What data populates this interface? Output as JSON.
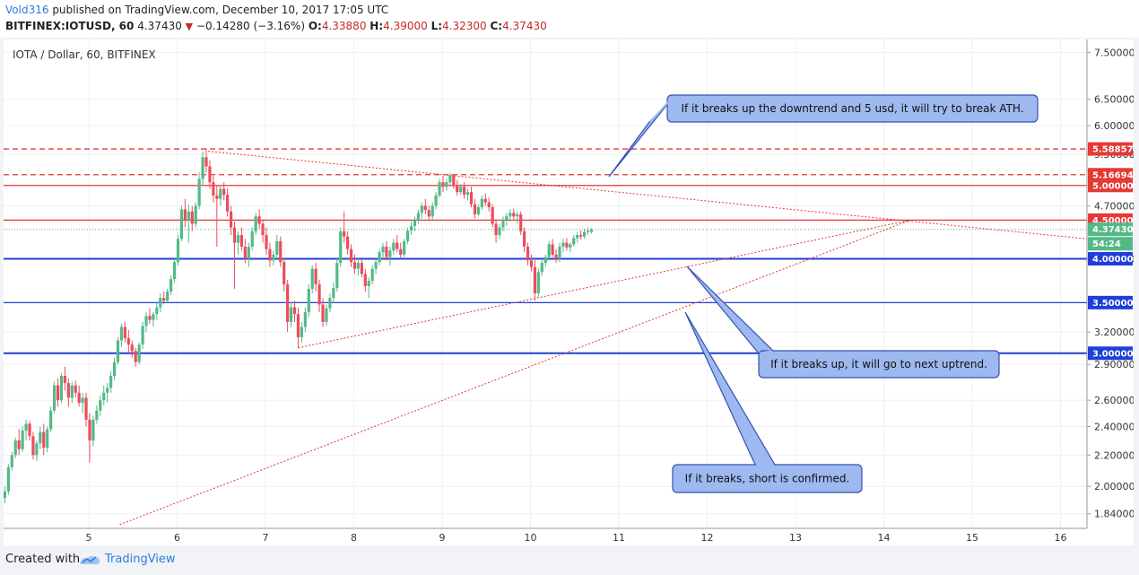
{
  "header": {
    "author": "Vold316",
    "published_text": "published on TradingView.com, December 10, 2017 17:05 UTC",
    "symbol": "BITFINEX:IOTUSD, 60",
    "last": "4.37430",
    "change": "−0.14280 (−3.16%)",
    "o_label": "O:",
    "o_value": "4.33880",
    "h_label": "H:",
    "h_value": "4.39000",
    "l_label": "L:",
    "l_value": "4.32300",
    "c_label": "C:",
    "c_value": "4.37430"
  },
  "footer": {
    "created_with": "Created with",
    "brand": "TradingView"
  },
  "colors": {
    "up": "#53b987",
    "down": "#eb4d5c",
    "red_line": "#e53935",
    "blue_line": "#1f3fd8",
    "callout_fill": "#9db9ef",
    "callout_stroke": "#3a4fb0"
  },
  "chart_data": {
    "type": "candlestick",
    "title": "IOTA / Dollar, 60, BITFINEX",
    "x_ticks": [
      "5",
      "6",
      "7",
      "8",
      "9",
      "10",
      "11",
      "12",
      "13",
      "14",
      "15",
      "16"
    ],
    "y_ticks": [
      "7.50000",
      "6.50000",
      "6.00000",
      "5.50000",
      "4.70000",
      "4.00000",
      "3.20000",
      "2.90000",
      "2.60000",
      "2.40000",
      "2.20000",
      "2.00000",
      "1.84000"
    ],
    "y_scale": "log",
    "ylim": [
      1.76,
      7.8
    ],
    "xlim": [
      4.05,
      16.3
    ],
    "current_price": "4.37430",
    "countdown": "54:24",
    "horizontal_levels": [
      {
        "price": 5.58857,
        "label": "5.58857",
        "color": "#e53935",
        "style": "dashed"
      },
      {
        "price": 5.16694,
        "label": "5.16694",
        "color": "#e53935",
        "style": "dashed"
      },
      {
        "price": 5.0,
        "label": "5.00000",
        "color": "#e53935",
        "style": "solid"
      },
      {
        "price": 4.5,
        "label": "4.50000",
        "color": "#e53935",
        "style": "solid"
      },
      {
        "price": 4.0,
        "label": "4.00000",
        "color": "#1f3fd8",
        "style": "solid"
      },
      {
        "price": 3.5,
        "label": "3.50000",
        "color": "#1f3fd8",
        "style": "solid"
      },
      {
        "price": 3.0,
        "label": "3.00000",
        "color": "#1f3fd8",
        "style": "solid"
      }
    ],
    "trendlines": [
      {
        "from": [
          6.35,
          5.55
        ],
        "to": [
          16.3,
          4.25
        ]
      },
      {
        "from": [
          7.37,
          3.05
        ],
        "to": [
          14.3,
          4.5
        ]
      },
      {
        "from": [
          5.35,
          1.78
        ],
        "to": [
          14.3,
          4.5
        ]
      }
    ],
    "annotations": [
      {
        "text": "If it breaks up the downtrend and 5 usd, it will try to break ATH."
      },
      {
        "text": "If it breaks up, it will go to next uptrend."
      },
      {
        "text": "If it breaks, short is confirmed."
      }
    ],
    "candles": [
      [
        4.05,
        1.93,
        2.0,
        1.9,
        1.97
      ],
      [
        4.09,
        1.97,
        2.14,
        1.95,
        2.12
      ],
      [
        4.13,
        2.12,
        2.22,
        2.1,
        2.2
      ],
      [
        4.17,
        2.2,
        2.32,
        2.18,
        2.3
      ],
      [
        4.21,
        2.3,
        2.38,
        2.2,
        2.24
      ],
      [
        4.25,
        2.24,
        2.4,
        2.22,
        2.37
      ],
      [
        4.29,
        2.37,
        2.45,
        2.3,
        2.42
      ],
      [
        4.33,
        2.42,
        2.44,
        2.3,
        2.33
      ],
      [
        4.37,
        2.33,
        2.36,
        2.17,
        2.2
      ],
      [
        4.41,
        2.2,
        2.3,
        2.16,
        2.28
      ],
      [
        4.45,
        2.28,
        2.4,
        2.24,
        2.36
      ],
      [
        4.49,
        2.36,
        2.42,
        2.2,
        2.25
      ],
      [
        4.53,
        2.25,
        2.4,
        2.22,
        2.38
      ],
      [
        4.57,
        2.38,
        2.55,
        2.36,
        2.52
      ],
      [
        4.61,
        2.52,
        2.75,
        2.5,
        2.72
      ],
      [
        4.65,
        2.72,
        2.78,
        2.55,
        2.6
      ],
      [
        4.69,
        2.6,
        2.82,
        2.58,
        2.8
      ],
      [
        4.73,
        2.8,
        2.88,
        2.68,
        2.74
      ],
      [
        4.77,
        2.74,
        2.78,
        2.55,
        2.62
      ],
      [
        4.81,
        2.62,
        2.75,
        2.58,
        2.72
      ],
      [
        4.85,
        2.72,
        2.76,
        2.62,
        2.66
      ],
      [
        4.89,
        2.66,
        2.72,
        2.55,
        2.58
      ],
      [
        4.93,
        2.58,
        2.66,
        2.5,
        2.62
      ],
      [
        4.97,
        2.62,
        2.66,
        2.4,
        2.45
      ],
      [
        5.01,
        2.45,
        2.5,
        2.15,
        2.3
      ],
      [
        5.05,
        2.3,
        2.48,
        2.26,
        2.45
      ],
      [
        5.09,
        2.45,
        2.56,
        2.42,
        2.52
      ],
      [
        5.13,
        2.52,
        2.64,
        2.48,
        2.6
      ],
      [
        5.17,
        2.6,
        2.72,
        2.56,
        2.66
      ],
      [
        5.21,
        2.66,
        2.74,
        2.58,
        2.7
      ],
      [
        5.25,
        2.7,
        2.84,
        2.66,
        2.8
      ],
      [
        5.29,
        2.8,
        2.96,
        2.76,
        2.92
      ],
      [
        5.33,
        2.92,
        3.15,
        2.9,
        3.12
      ],
      [
        5.37,
        3.12,
        3.28,
        3.06,
        3.25
      ],
      [
        5.41,
        3.25,
        3.3,
        3.1,
        3.14
      ],
      [
        5.45,
        3.14,
        3.22,
        3.0,
        3.08
      ],
      [
        5.49,
        3.08,
        3.12,
        2.96,
        3.02
      ],
      [
        5.53,
        3.02,
        3.05,
        2.88,
        2.92
      ],
      [
        5.57,
        2.92,
        3.1,
        2.9,
        3.08
      ],
      [
        5.61,
        3.08,
        3.3,
        3.04,
        3.26
      ],
      [
        5.65,
        3.26,
        3.4,
        3.2,
        3.36
      ],
      [
        5.69,
        3.36,
        3.44,
        3.28,
        3.32
      ],
      [
        5.73,
        3.32,
        3.4,
        3.25,
        3.38
      ],
      [
        5.77,
        3.38,
        3.5,
        3.32,
        3.45
      ],
      [
        5.81,
        3.45,
        3.6,
        3.4,
        3.55
      ],
      [
        5.85,
        3.55,
        3.62,
        3.48,
        3.52
      ],
      [
        5.89,
        3.52,
        3.65,
        3.5,
        3.62
      ],
      [
        5.93,
        3.62,
        3.8,
        3.58,
        3.76
      ],
      [
        5.97,
        3.76,
        4.0,
        3.72,
        3.96
      ],
      [
        6.01,
        3.96,
        4.3,
        3.92,
        4.25
      ],
      [
        6.05,
        4.25,
        4.7,
        4.22,
        4.65
      ],
      [
        6.09,
        4.65,
        4.8,
        4.4,
        4.5
      ],
      [
        6.13,
        4.5,
        4.72,
        4.2,
        4.62
      ],
      [
        6.17,
        4.62,
        4.7,
        4.35,
        4.45
      ],
      [
        6.21,
        4.45,
        4.75,
        4.4,
        4.7
      ],
      [
        6.25,
        4.7,
        5.2,
        4.65,
        5.1
      ],
      [
        6.29,
        5.1,
        5.55,
        5.0,
        5.45
      ],
      [
        6.33,
        5.45,
        5.6,
        5.2,
        5.3
      ],
      [
        6.37,
        5.3,
        5.4,
        4.95,
        5.05
      ],
      [
        6.41,
        5.05,
        5.15,
        4.75,
        4.85
      ],
      [
        6.45,
        4.85,
        5.0,
        4.15,
        4.8
      ],
      [
        6.49,
        4.8,
        5.0,
        4.7,
        4.95
      ],
      [
        6.53,
        4.95,
        5.05,
        4.78,
        4.86
      ],
      [
        6.57,
        4.86,
        4.96,
        4.55,
        4.62
      ],
      [
        6.61,
        4.62,
        4.7,
        4.3,
        4.4
      ],
      [
        6.65,
        4.4,
        4.48,
        3.65,
        4.2
      ],
      [
        6.69,
        4.2,
        4.35,
        4.05,
        4.3
      ],
      [
        6.73,
        4.3,
        4.4,
        4.1,
        4.15
      ],
      [
        6.77,
        4.15,
        4.25,
        3.95,
        4.0
      ],
      [
        6.81,
        4.0,
        4.2,
        3.9,
        4.15
      ],
      [
        6.85,
        4.15,
        4.4,
        4.1,
        4.35
      ],
      [
        6.89,
        4.35,
        4.6,
        4.3,
        4.55
      ],
      [
        6.93,
        4.55,
        4.65,
        4.38,
        4.45
      ],
      [
        6.97,
        4.45,
        4.5,
        4.2,
        4.3
      ],
      [
        7.01,
        4.3,
        4.4,
        4.05,
        4.12
      ],
      [
        7.05,
        4.12,
        4.2,
        3.9,
        3.98
      ],
      [
        7.09,
        3.98,
        4.1,
        3.92,
        4.05
      ],
      [
        7.13,
        4.05,
        4.3,
        4.0,
        4.22
      ],
      [
        7.17,
        4.22,
        4.28,
        3.9,
        3.96
      ],
      [
        7.21,
        3.96,
        4.0,
        3.62,
        3.7
      ],
      [
        7.25,
        3.7,
        3.75,
        3.2,
        3.3
      ],
      [
        7.29,
        3.3,
        3.5,
        3.25,
        3.45
      ],
      [
        7.33,
        3.45,
        3.52,
        3.3,
        3.38
      ],
      [
        7.37,
        3.38,
        3.45,
        3.05,
        3.15
      ],
      [
        7.41,
        3.15,
        3.3,
        3.1,
        3.25
      ],
      [
        7.45,
        3.25,
        3.45,
        3.2,
        3.4
      ],
      [
        7.49,
        3.4,
        3.7,
        3.35,
        3.65
      ],
      [
        7.53,
        3.65,
        3.92,
        3.6,
        3.88
      ],
      [
        7.57,
        3.88,
        3.95,
        3.62,
        3.7
      ],
      [
        7.61,
        3.7,
        3.75,
        3.4,
        3.48
      ],
      [
        7.65,
        3.48,
        3.55,
        3.25,
        3.3
      ],
      [
        7.69,
        3.3,
        3.48,
        3.26,
        3.44
      ],
      [
        7.73,
        3.44,
        3.6,
        3.4,
        3.55
      ],
      [
        7.77,
        3.55,
        3.72,
        3.5,
        3.66
      ],
      [
        7.81,
        3.66,
        4.0,
        3.62,
        3.95
      ],
      [
        7.85,
        3.95,
        4.4,
        3.9,
        4.35
      ],
      [
        7.89,
        4.35,
        4.62,
        4.2,
        4.28
      ],
      [
        7.93,
        4.28,
        4.35,
        4.05,
        4.12
      ],
      [
        7.97,
        4.12,
        4.18,
        3.9,
        3.96
      ],
      [
        8.01,
        3.96,
        4.05,
        3.82,
        3.88
      ],
      [
        8.05,
        3.88,
        4.0,
        3.8,
        3.95
      ],
      [
        8.09,
        3.95,
        4.02,
        3.78,
        3.82
      ],
      [
        8.13,
        3.82,
        3.88,
        3.62,
        3.68
      ],
      [
        8.17,
        3.68,
        3.78,
        3.55,
        3.74
      ],
      [
        8.21,
        3.74,
        3.92,
        3.7,
        3.88
      ],
      [
        8.25,
        3.88,
        4.0,
        3.82,
        3.96
      ],
      [
        8.29,
        3.96,
        4.12,
        3.92,
        4.08
      ],
      [
        8.33,
        4.08,
        4.2,
        4.0,
        4.15
      ],
      [
        8.37,
        4.15,
        4.22,
        3.98,
        4.02
      ],
      [
        8.41,
        4.02,
        4.15,
        3.92,
        4.1
      ],
      [
        8.45,
        4.1,
        4.25,
        4.05,
        4.2
      ],
      [
        8.49,
        4.2,
        4.3,
        4.08,
        4.12
      ],
      [
        8.53,
        4.12,
        4.2,
        4.0,
        4.05
      ],
      [
        8.57,
        4.05,
        4.25,
        4.02,
        4.22
      ],
      [
        8.61,
        4.22,
        4.4,
        4.18,
        4.36
      ],
      [
        8.65,
        4.36,
        4.48,
        4.3,
        4.42
      ],
      [
        8.69,
        4.42,
        4.55,
        4.35,
        4.5
      ],
      [
        8.73,
        4.5,
        4.65,
        4.45,
        4.6
      ],
      [
        8.77,
        4.6,
        4.75,
        4.52,
        4.7
      ],
      [
        8.81,
        4.7,
        4.8,
        4.58,
        4.64
      ],
      [
        8.85,
        4.64,
        4.7,
        4.5,
        4.55
      ],
      [
        8.89,
        4.55,
        4.75,
        4.5,
        4.7
      ],
      [
        8.93,
        4.7,
        4.9,
        4.65,
        4.85
      ],
      [
        8.97,
        4.85,
        5.1,
        4.82,
        5.05
      ],
      [
        9.01,
        5.05,
        5.15,
        4.9,
        4.98
      ],
      [
        9.05,
        4.98,
        5.1,
        4.92,
        5.05
      ],
      [
        9.09,
        5.05,
        5.2,
        5.0,
        5.15
      ],
      [
        9.13,
        5.15,
        5.17,
        4.95,
        5.0
      ],
      [
        9.17,
        5.0,
        5.08,
        4.85,
        4.9
      ],
      [
        9.21,
        4.9,
        5.02,
        4.86,
        4.98
      ],
      [
        9.25,
        4.98,
        5.05,
        4.8,
        4.86
      ],
      [
        9.29,
        4.86,
        4.95,
        4.78,
        4.9
      ],
      [
        9.33,
        4.9,
        4.98,
        4.68,
        4.72
      ],
      [
        9.37,
        4.72,
        4.8,
        4.52,
        4.58
      ],
      [
        9.41,
        4.58,
        4.72,
        4.55,
        4.68
      ],
      [
        9.45,
        4.68,
        4.85,
        4.64,
        4.8
      ],
      [
        9.49,
        4.8,
        4.88,
        4.7,
        4.75
      ],
      [
        9.53,
        4.75,
        4.82,
        4.62,
        4.68
      ],
      [
        9.57,
        4.68,
        4.72,
        4.4,
        4.45
      ],
      [
        9.61,
        4.45,
        4.5,
        4.2,
        4.3
      ],
      [
        9.65,
        4.3,
        4.45,
        4.25,
        4.4
      ],
      [
        9.69,
        4.4,
        4.55,
        4.35,
        4.5
      ],
      [
        9.73,
        4.5,
        4.6,
        4.42,
        4.55
      ],
      [
        9.77,
        4.55,
        4.65,
        4.48,
        4.6
      ],
      [
        9.81,
        4.6,
        4.66,
        4.5,
        4.55
      ],
      [
        9.85,
        4.55,
        4.62,
        4.45,
        4.58
      ],
      [
        9.89,
        4.58,
        4.62,
        4.3,
        4.35
      ],
      [
        9.93,
        4.35,
        4.4,
        4.08,
        4.15
      ],
      [
        9.97,
        4.15,
        4.2,
        3.92,
        3.98
      ],
      [
        10.01,
        3.98,
        4.05,
        3.85,
        3.9
      ],
      [
        10.05,
        3.9,
        3.98,
        3.52,
        3.6
      ],
      [
        10.09,
        3.6,
        3.88,
        3.56,
        3.84
      ],
      [
        10.13,
        3.84,
        3.98,
        3.8,
        3.95
      ],
      [
        10.17,
        3.95,
        4.05,
        3.9,
        4.02
      ],
      [
        10.21,
        4.02,
        4.22,
        3.98,
        4.18
      ],
      [
        10.25,
        4.18,
        4.25,
        4.02,
        4.05
      ],
      [
        10.29,
        4.05,
        4.12,
        3.95,
        4.0
      ],
      [
        10.33,
        4.0,
        4.2,
        3.96,
        4.15
      ],
      [
        10.37,
        4.15,
        4.25,
        4.08,
        4.2
      ],
      [
        10.41,
        4.2,
        4.26,
        4.1,
        4.14
      ],
      [
        10.45,
        4.14,
        4.2,
        4.08,
        4.18
      ],
      [
        10.49,
        4.18,
        4.3,
        4.15,
        4.26
      ],
      [
        10.53,
        4.26,
        4.34,
        4.2,
        4.3
      ],
      [
        10.57,
        4.3,
        4.36,
        4.24,
        4.28
      ],
      [
        10.61,
        4.28,
        4.38,
        4.25,
        4.34
      ],
      [
        10.65,
        4.34,
        4.4,
        4.3,
        4.36
      ],
      [
        10.69,
        4.34,
        4.39,
        4.32,
        4.37
      ]
    ]
  }
}
